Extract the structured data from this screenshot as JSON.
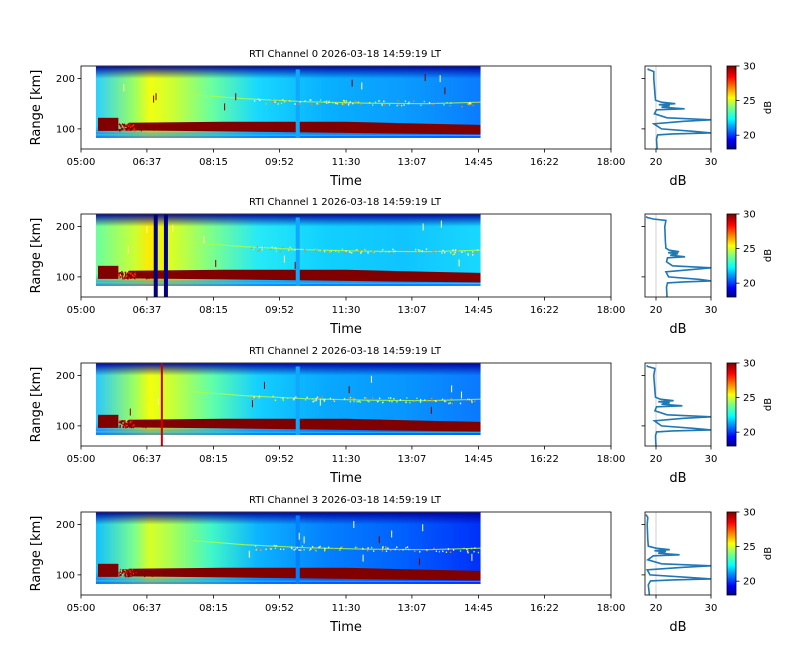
{
  "chart_data": {
    "type": "heatmap",
    "x_ticks": [
      "05:00",
      "06:37",
      "08:15",
      "09:52",
      "11:30",
      "13:07",
      "14:45",
      "16:22",
      "18:00"
    ],
    "data_window": {
      "start": "05:22",
      "end": "14:48"
    },
    "xlabel": "Time",
    "ylabel": "Range [km]",
    "ylim": [
      60,
      225
    ],
    "y_ticks": [
      100,
      200
    ],
    "profile": {
      "xlabel": "dB",
      "xlim": [
        18,
        30
      ],
      "x_ticks": [
        "20",
        "30"
      ]
    },
    "colorbar": {
      "label": "dB",
      "vmin": 18,
      "vmax": 30,
      "ticks": [
        "20",
        "25",
        "30"
      ],
      "colormap": "jet"
    },
    "panels": [
      {
        "title": "RTI Channel 0 2026-03-18 14:59:19 LT",
        "profile": [
          [
            60,
            20.2
          ],
          [
            80,
            20.1
          ],
          [
            88,
            20.3
          ],
          [
            90,
            23
          ],
          [
            92,
            30
          ],
          [
            95,
            27
          ],
          [
            100,
            21
          ],
          [
            110,
            19.6
          ],
          [
            115,
            25
          ],
          [
            118,
            30
          ],
          [
            122,
            22
          ],
          [
            130,
            19.7
          ],
          [
            138,
            20.1
          ],
          [
            140,
            25.2
          ],
          [
            143,
            21
          ],
          [
            146,
            22.5
          ],
          [
            148,
            20.5
          ],
          [
            150,
            23.5
          ],
          [
            153,
            21
          ],
          [
            157,
            19.9
          ],
          [
            170,
            19.8
          ],
          [
            200,
            19.6
          ],
          [
            214,
            19.6
          ],
          [
            218,
            18.6
          ],
          [
            220,
            18.5
          ]
        ],
        "marker_lines": [],
        "sporadic_line": null
      },
      {
        "title": "RTI Channel 1 2026-03-18 14:59:19 LT",
        "profile": [
          [
            60,
            22.0
          ],
          [
            80,
            21.9
          ],
          [
            88,
            22.1
          ],
          [
            90,
            25
          ],
          [
            92,
            30
          ],
          [
            95,
            28
          ],
          [
            100,
            22.3
          ],
          [
            110,
            21.8
          ],
          [
            115,
            27
          ],
          [
            118,
            30
          ],
          [
            122,
            23
          ],
          [
            130,
            21.9
          ],
          [
            138,
            22.1
          ],
          [
            140,
            25.3
          ],
          [
            143,
            22.6
          ],
          [
            146,
            24
          ],
          [
            148,
            22.2
          ],
          [
            150,
            24.2
          ],
          [
            153,
            22.4
          ],
          [
            157,
            21.8
          ],
          [
            170,
            21.7
          ],
          [
            200,
            21.6
          ],
          [
            212,
            21.8
          ],
          [
            215,
            19.5
          ],
          [
            218,
            18.4
          ],
          [
            220,
            18.2
          ]
        ],
        "marker_lines": [
          {
            "time": "06:50",
            "color": "#000080"
          },
          {
            "time": "07:05",
            "color": "#000080"
          }
        ],
        "sporadic_line": null
      },
      {
        "title": "RTI Channel 2 2026-03-18 14:59:19 LT",
        "profile": [
          [
            60,
            20.0
          ],
          [
            80,
            19.9
          ],
          [
            88,
            20.1
          ],
          [
            90,
            23
          ],
          [
            92,
            30
          ],
          [
            95,
            27
          ],
          [
            100,
            21
          ],
          [
            110,
            19.7
          ],
          [
            115,
            25
          ],
          [
            118,
            30
          ],
          [
            122,
            22
          ],
          [
            130,
            19.8
          ],
          [
            138,
            20.1
          ],
          [
            140,
            24.8
          ],
          [
            143,
            21
          ],
          [
            146,
            22.5
          ],
          [
            148,
            20.4
          ],
          [
            150,
            23.2
          ],
          [
            153,
            20.8
          ],
          [
            157,
            19.9
          ],
          [
            170,
            19.8
          ],
          [
            200,
            19.6
          ],
          [
            214,
            19.8
          ],
          [
            218,
            18.5
          ],
          [
            220,
            18.3
          ]
        ],
        "marker_lines": [],
        "sporadic_line": {
          "time": "06:59",
          "color": "#cc0000"
        }
      },
      {
        "title": "RTI Channel 3 2026-03-18 14:59:19 LT",
        "profile": [
          [
            60,
            18.8
          ],
          [
            80,
            18.6
          ],
          [
            88,
            19.0
          ],
          [
            90,
            23
          ],
          [
            92,
            30
          ],
          [
            95,
            26
          ],
          [
            100,
            18.9
          ],
          [
            110,
            18.4
          ],
          [
            115,
            25
          ],
          [
            118,
            30
          ],
          [
            122,
            21
          ],
          [
            130,
            18.5
          ],
          [
            138,
            19.5
          ],
          [
            140,
            24.3
          ],
          [
            143,
            20.4
          ],
          [
            146,
            21.8
          ],
          [
            148,
            19.7
          ],
          [
            150,
            22.5
          ],
          [
            153,
            20
          ],
          [
            157,
            18.6
          ],
          [
            170,
            18.5
          ],
          [
            200,
            18.4
          ],
          [
            214,
            18.5
          ],
          [
            218,
            18.3
          ],
          [
            220,
            18.2
          ]
        ],
        "marker_lines": [],
        "sporadic_line": null
      }
    ]
  }
}
